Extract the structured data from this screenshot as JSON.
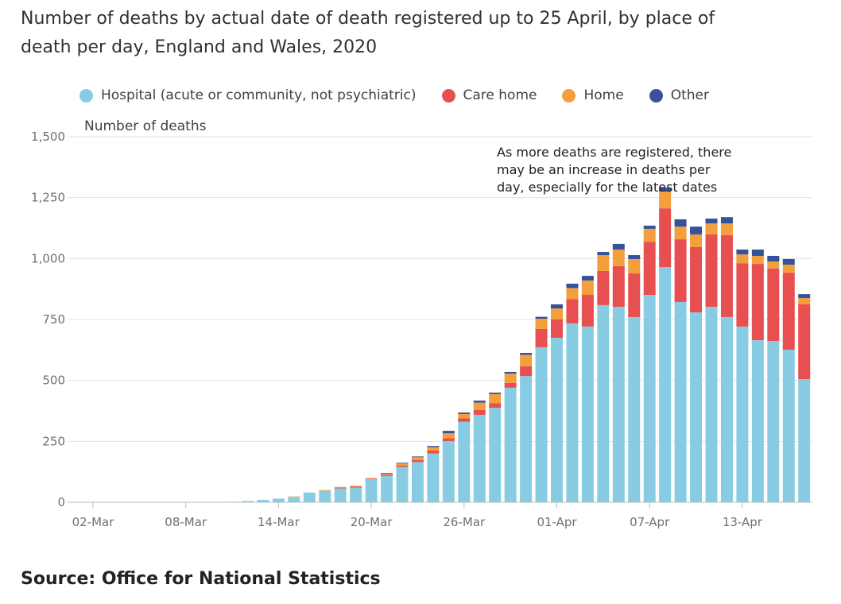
{
  "chart_data": {
    "type": "bar",
    "stacked": true,
    "title": "Number of deaths by actual date of death registered up to 25 April, by place of death per day, England and Wales, 2020",
    "ylabel": "Number of deaths",
    "xlabel": "",
    "ylim": [
      0,
      1500
    ],
    "yticks": [
      "0",
      "250",
      "500",
      "750",
      "1,000",
      "1,250",
      "1,500"
    ],
    "ytick_values": [
      0,
      250,
      500,
      750,
      1000,
      1250,
      1500
    ],
    "xtick_labels": [
      "02-Mar",
      "08-Mar",
      "14-Mar",
      "20-Mar",
      "26-Mar",
      "01-Apr",
      "07-Apr",
      "13-Apr"
    ],
    "grid": true,
    "legend_position": "top",
    "annotation": "As more deaths are registered, there may be an increase in deaths per day, especially for the latest dates",
    "categories": [
      "02-Mar",
      "03-Mar",
      "04-Mar",
      "05-Mar",
      "06-Mar",
      "07-Mar",
      "08-Mar",
      "09-Mar",
      "10-Mar",
      "11-Mar",
      "12-Mar",
      "13-Mar",
      "14-Mar",
      "15-Mar",
      "16-Mar",
      "17-Mar",
      "18-Mar",
      "19-Mar",
      "20-Mar",
      "21-Mar",
      "22-Mar",
      "23-Mar",
      "24-Mar",
      "25-Mar",
      "26-Mar",
      "27-Mar",
      "28-Mar",
      "29-Mar",
      "30-Mar",
      "31-Mar",
      "01-Apr",
      "02-Apr",
      "03-Apr",
      "04-Apr",
      "05-Apr",
      "06-Apr",
      "07-Apr",
      "08-Apr",
      "09-Apr",
      "10-Apr",
      "11-Apr",
      "12-Apr",
      "13-Apr",
      "14-Apr",
      "15-Apr",
      "16-Apr",
      "17-Apr"
    ],
    "series": [
      {
        "name": "Hospital (acute or community, not psychiatric)",
        "color": "#88cce4",
        "values": [
          0,
          0,
          0,
          0,
          0,
          0,
          0,
          0,
          1,
          2,
          5,
          10,
          15,
          22,
          40,
          47,
          57,
          60,
          95,
          108,
          145,
          165,
          200,
          251,
          330,
          359,
          388,
          470,
          518,
          636,
          675,
          734,
          721,
          809,
          802,
          760,
          851,
          965,
          822,
          779,
          802,
          760,
          721,
          665,
          662,
          626,
          505
        ]
      },
      {
        "name": "Care home",
        "color": "#e84f50",
        "values": [
          0,
          0,
          0,
          0,
          0,
          0,
          0,
          0,
          0,
          0,
          0,
          0,
          0,
          0,
          0,
          0,
          3,
          4,
          2,
          5,
          6,
          8,
          12,
          12,
          14,
          20,
          18,
          20,
          40,
          75,
          75,
          100,
          130,
          140,
          167,
          179,
          218,
          241,
          257,
          268,
          297,
          336,
          260,
          313,
          297,
          316,
          307
        ]
      },
      {
        "name": "Home",
        "color": "#f39f3e",
        "values": [
          0,
          0,
          0,
          0,
          0,
          0,
          0,
          0,
          0,
          0,
          0,
          0,
          0,
          2,
          0,
          3,
          3,
          4,
          3,
          4,
          8,
          12,
          14,
          20,
          18,
          30,
          38,
          38,
          47,
          42,
          45,
          45,
          59,
          65,
          68,
          59,
          53,
          69,
          52,
          52,
          45,
          48,
          36,
          33,
          29,
          33,
          26
        ]
      },
      {
        "name": "Other",
        "color": "#35529a",
        "values": [
          0,
          0,
          0,
          0,
          0,
          0,
          0,
          0,
          0,
          0,
          0,
          0,
          0,
          0,
          0,
          0,
          0,
          0,
          0,
          3,
          3,
          3,
          5,
          10,
          6,
          8,
          6,
          7,
          8,
          8,
          17,
          18,
          19,
          13,
          23,
          16,
          13,
          16,
          30,
          32,
          20,
          26,
          20,
          26,
          23,
          23,
          16
        ]
      }
    ]
  },
  "source": "Source: Office for National Statistics"
}
